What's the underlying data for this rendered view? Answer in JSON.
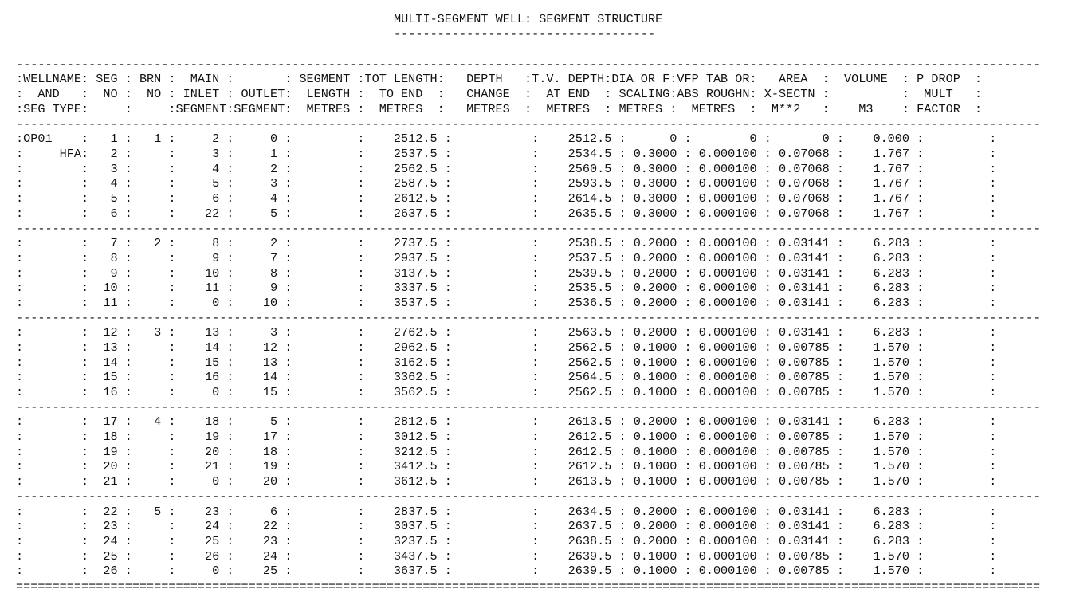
{
  "report": {
    "title": "MULTI-SEGMENT WELL: SEGMENT STRUCTURE",
    "title_underline": "------------------------------------",
    "rule_dashed": "---------------------------------------------------------------------------------------------------------------------------------------------",
    "rule_double": "=============================================================================================================================================",
    "headers": [
      ":WELLNAME: SEG : BRN :  MAIN :       : SEGMENT :TOT LENGTH:   DEPTH   :T.V. DEPTH:DIA OR F:VFP TAB OR:   AREA  :  VOLUME  : P DROP  :",
      ":  AND   :  NO :  NO : INLET : OUTLET:  LENGTH :  TO END  :   CHANGE  :  AT END  : SCALING:ABS ROUGHN: X-SECTN :          :  MULT   :",
      ":SEG TYPE:     :     :SEGMENT:SEGMENT:  METRES :  METRES  :   METRES  :  METRES  : METRES :  METRES  :  M**2   :    M3    : FACTOR  :"
    ],
    "groups": [
      [
        ":OP01    :   1 :   1 :     2 :     0 :         :    2512.5 :           :    2512.5 :      0 :        0 :       0 :    0.000 :         :",
        ":     HFA:   2 :     :     3 :     1 :         :    2537.5 :           :    2534.5 : 0.3000 : 0.000100 : 0.07068 :    1.767 :         :",
        ":        :   3 :     :     4 :     2 :         :    2562.5 :           :    2560.5 : 0.3000 : 0.000100 : 0.07068 :    1.767 :         :",
        ":        :   4 :     :     5 :     3 :         :    2587.5 :           :    2593.5 : 0.3000 : 0.000100 : 0.07068 :    1.767 :         :",
        ":        :   5 :     :     6 :     4 :         :    2612.5 :           :    2614.5 : 0.3000 : 0.000100 : 0.07068 :    1.767 :         :",
        ":        :   6 :     :    22 :     5 :         :    2637.5 :           :    2635.5 : 0.3000 : 0.000100 : 0.07068 :    1.767 :         :"
      ],
      [
        ":        :   7 :   2 :     8 :     2 :         :    2737.5 :           :    2538.5 : 0.2000 : 0.000100 : 0.03141 :    6.283 :         :",
        ":        :   8 :     :     9 :     7 :         :    2937.5 :           :    2537.5 : 0.2000 : 0.000100 : 0.03141 :    6.283 :         :",
        ":        :   9 :     :    10 :     8 :         :    3137.5 :           :    2539.5 : 0.2000 : 0.000100 : 0.03141 :    6.283 :         :",
        ":        :  10 :     :    11 :     9 :         :    3337.5 :           :    2535.5 : 0.2000 : 0.000100 : 0.03141 :    6.283 :         :",
        ":        :  11 :     :     0 :    10 :         :    3537.5 :           :    2536.5 : 0.2000 : 0.000100 : 0.03141 :    6.283 :         :"
      ],
      [
        ":        :  12 :   3 :    13 :     3 :         :    2762.5 :           :    2563.5 : 0.2000 : 0.000100 : 0.03141 :    6.283 :         :",
        ":        :  13 :     :    14 :    12 :         :    2962.5 :           :    2562.5 : 0.1000 : 0.000100 : 0.00785 :    1.570 :         :",
        ":        :  14 :     :    15 :    13 :         :    3162.5 :           :    2562.5 : 0.1000 : 0.000100 : 0.00785 :    1.570 :         :",
        ":        :  15 :     :    16 :    14 :         :    3362.5 :           :    2564.5 : 0.1000 : 0.000100 : 0.00785 :    1.570 :         :",
        ":        :  16 :     :     0 :    15 :         :    3562.5 :           :    2562.5 : 0.1000 : 0.000100 : 0.00785 :    1.570 :         :"
      ],
      [
        ":        :  17 :   4 :    18 :     5 :         :    2812.5 :           :    2613.5 : 0.2000 : 0.000100 : 0.03141 :    6.283 :         :",
        ":        :  18 :     :    19 :    17 :         :    3012.5 :           :    2612.5 : 0.1000 : 0.000100 : 0.00785 :    1.570 :         :",
        ":        :  19 :     :    20 :    18 :         :    3212.5 :           :    2612.5 : 0.1000 : 0.000100 : 0.00785 :    1.570 :         :",
        ":        :  20 :     :    21 :    19 :         :    3412.5 :           :    2612.5 : 0.1000 : 0.000100 : 0.00785 :    1.570 :         :",
        ":        :  21 :     :     0 :    20 :         :    3612.5 :           :    2613.5 : 0.1000 : 0.000100 : 0.00785 :    1.570 :         :"
      ],
      [
        ":        :  22 :   5 :    23 :     6 :         :    2837.5 :           :    2634.5 : 0.2000 : 0.000100 : 0.03141 :    6.283 :         :",
        ":        :  23 :     :    24 :    22 :         :    3037.5 :           :    2637.5 : 0.2000 : 0.000100 : 0.03141 :    6.283 :         :",
        ":        :  24 :     :    25 :    23 :         :    3237.5 :           :    2638.5 : 0.2000 : 0.000100 : 0.03141 :    6.283 :         :",
        ":        :  25 :     :    26 :    24 :         :    3437.5 :           :    2639.5 : 0.1000 : 0.000100 : 0.00785 :    1.570 :         :",
        ":        :  26 :     :     0 :    25 :         :    3637.5 :           :    2639.5 : 0.1000 : 0.000100 : 0.00785 :    1.570 :         :"
      ]
    ]
  }
}
